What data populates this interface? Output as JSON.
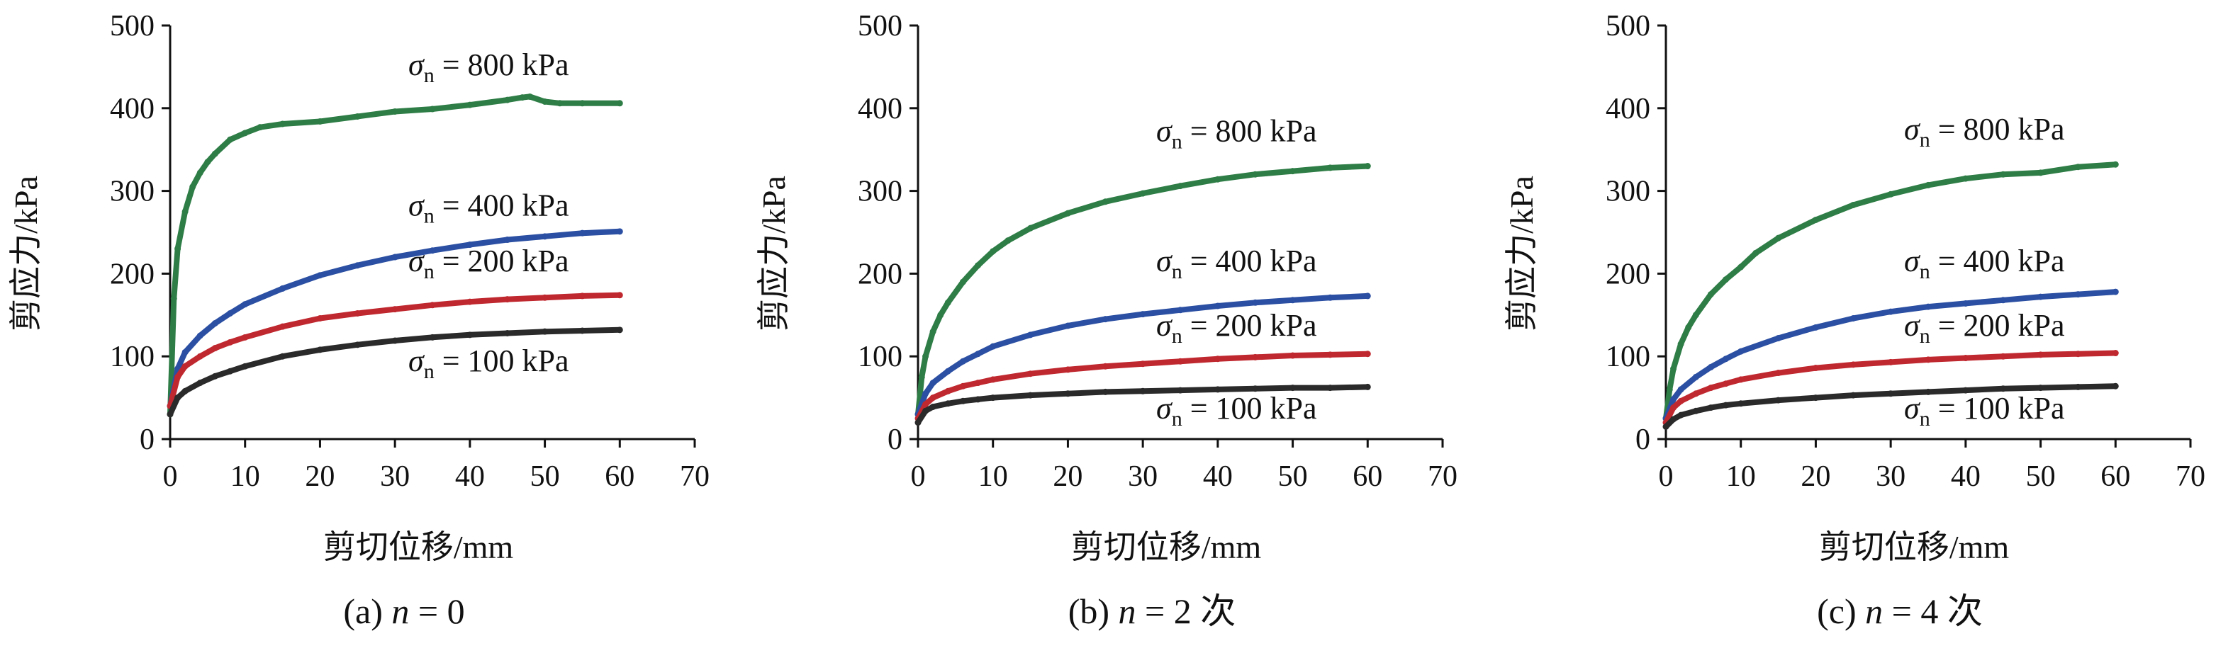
{
  "chart_data": [
    {
      "type": "line",
      "caption": "(a) n = 0",
      "caption_parts": {
        "open": "(a) ",
        "var": "n",
        "rest": " = 0"
      },
      "xlabel": "剪切位移/mm",
      "ylabel": "剪应力/kPa",
      "xlim": [
        0,
        70
      ],
      "ylim": [
        0,
        500
      ],
      "xticks": [
        "0",
        "10",
        "20",
        "30",
        "40",
        "50",
        "60",
        "70"
      ],
      "yticks": [
        "0",
        "100",
        "200",
        "300",
        "400",
        "500"
      ],
      "grid": false,
      "series": [
        {
          "name": "σn = 800 kPa",
          "label_parts": {
            "sym": "σ",
            "sub": "n",
            "rest": " = 800 kPa"
          },
          "color": "#2e7d46",
          "x": [
            0,
            0.5,
            1,
            2,
            3,
            4,
            5,
            6,
            8,
            10,
            12,
            15,
            20,
            25,
            30,
            35,
            40,
            45,
            47,
            48,
            50,
            52,
            55,
            60
          ],
          "y": [
            30,
            170,
            230,
            275,
            305,
            322,
            335,
            345,
            362,
            370,
            377,
            381,
            384,
            390,
            396,
            399,
            404,
            410,
            413,
            414,
            408,
            406,
            406,
            406
          ]
        },
        {
          "name": "σn = 400 kPa",
          "label_parts": {
            "sym": "σ",
            "sub": "n",
            "rest": " = 400 kPa"
          },
          "color": "#2b4fa2",
          "x": [
            0,
            1,
            2,
            4,
            6,
            8,
            10,
            15,
            20,
            25,
            30,
            35,
            40,
            45,
            50,
            55,
            60
          ],
          "y": [
            40,
            85,
            105,
            125,
            140,
            152,
            163,
            182,
            198,
            210,
            220,
            228,
            235,
            241,
            245,
            249,
            251
          ]
        },
        {
          "name": "σn = 200 kPa",
          "label_parts": {
            "sym": "σ",
            "sub": "n",
            "rest": " = 200 kPa"
          },
          "color": "#c0282f",
          "x": [
            0,
            1,
            2,
            4,
            6,
            8,
            10,
            15,
            20,
            25,
            30,
            35,
            40,
            45,
            50,
            55,
            60
          ],
          "y": [
            40,
            75,
            88,
            100,
            110,
            117,
            123,
            136,
            146,
            152,
            157,
            162,
            166,
            169,
            171,
            173,
            174
          ]
        },
        {
          "name": "σn = 100 kPa",
          "label_parts": {
            "sym": "σ",
            "sub": "n",
            "rest": " = 100 kPa"
          },
          "color": "#2a2a2a",
          "x": [
            0,
            1,
            2,
            4,
            6,
            8,
            10,
            15,
            20,
            25,
            30,
            35,
            40,
            45,
            50,
            55,
            60
          ],
          "y": [
            30,
            50,
            58,
            68,
            76,
            82,
            88,
            100,
            108,
            114,
            119,
            123,
            126,
            128,
            130,
            131,
            132
          ]
        }
      ]
    },
    {
      "type": "line",
      "caption": "(b) n = 2 次",
      "caption_parts": {
        "open": "(b) ",
        "var": "n",
        "rest": " = 2 次"
      },
      "xlabel": "剪切位移/mm",
      "ylabel": "剪应力/kPa",
      "xlim": [
        0,
        70
      ],
      "ylim": [
        0,
        500
      ],
      "xticks": [
        "0",
        "10",
        "20",
        "30",
        "40",
        "50",
        "60",
        "70"
      ],
      "yticks": [
        "0",
        "100",
        "200",
        "300",
        "400",
        "500"
      ],
      "grid": false,
      "series": [
        {
          "name": "σn = 800 kPa",
          "label_parts": {
            "sym": "σ",
            "sub": "n",
            "rest": " = 800 kPa"
          },
          "color": "#2e7d46",
          "x": [
            0,
            0.5,
            1,
            2,
            3,
            4,
            6,
            8,
            10,
            12,
            15,
            20,
            25,
            30,
            35,
            40,
            45,
            50,
            55,
            60
          ],
          "y": [
            30,
            75,
            100,
            130,
            150,
            165,
            190,
            210,
            227,
            240,
            255,
            273,
            287,
            297,
            306,
            314,
            320,
            324,
            328,
            330
          ]
        },
        {
          "name": "σn = 400 kPa",
          "label_parts": {
            "sym": "σ",
            "sub": "n",
            "rest": " = 400 kPa"
          },
          "color": "#2b4fa2",
          "x": [
            0,
            1,
            2,
            4,
            6,
            8,
            10,
            15,
            20,
            25,
            30,
            35,
            40,
            45,
            50,
            55,
            60
          ],
          "y": [
            30,
            55,
            68,
            82,
            94,
            103,
            112,
            126,
            137,
            145,
            151,
            156,
            161,
            165,
            168,
            171,
            173
          ]
        },
        {
          "name": "σn = 200 kPa",
          "label_parts": {
            "sym": "σ",
            "sub": "n",
            "rest": " = 200 kPa"
          },
          "color": "#c0282f",
          "x": [
            0,
            1,
            2,
            4,
            6,
            8,
            10,
            15,
            20,
            25,
            30,
            35,
            40,
            45,
            50,
            55,
            60
          ],
          "y": [
            25,
            42,
            50,
            58,
            64,
            68,
            72,
            79,
            84,
            88,
            91,
            94,
            97,
            99,
            101,
            102,
            103
          ]
        },
        {
          "name": "σn = 100 kPa",
          "label_parts": {
            "sym": "σ",
            "sub": "n",
            "rest": " = 100 kPa"
          },
          "color": "#2a2a2a",
          "x": [
            0,
            1,
            2,
            4,
            6,
            8,
            10,
            15,
            20,
            25,
            30,
            35,
            40,
            45,
            50,
            55,
            60
          ],
          "y": [
            20,
            34,
            39,
            43,
            46,
            48,
            50,
            53,
            55,
            57,
            58,
            59,
            60,
            61,
            62,
            62,
            63
          ]
        }
      ]
    },
    {
      "type": "line",
      "caption": "(c) n = 4 次",
      "caption_parts": {
        "open": "(c) ",
        "var": "n",
        "rest": " = 4 次"
      },
      "xlabel": "剪切位移/mm",
      "ylabel": "剪应力/kPa",
      "xlim": [
        0,
        70
      ],
      "ylim": [
        0,
        500
      ],
      "xticks": [
        "0",
        "10",
        "20",
        "30",
        "40",
        "50",
        "60",
        "70"
      ],
      "yticks": [
        "0",
        "100",
        "200",
        "300",
        "400",
        "500"
      ],
      "grid": false,
      "series": [
        {
          "name": "σn = 800 kPa",
          "label_parts": {
            "sym": "σ",
            "sub": "n",
            "rest": " = 800 kPa"
          },
          "color": "#2e7d46",
          "x": [
            0,
            0.5,
            1,
            2,
            3,
            4,
            6,
            8,
            10,
            12,
            15,
            20,
            25,
            30,
            35,
            40,
            45,
            50,
            55,
            60
          ],
          "y": [
            25,
            60,
            85,
            115,
            135,
            150,
            175,
            193,
            208,
            225,
            243,
            265,
            283,
            296,
            307,
            315,
            320,
            322,
            329,
            332
          ]
        },
        {
          "name": "σn = 400 kPa",
          "label_parts": {
            "sym": "σ",
            "sub": "n",
            "rest": " = 400 kPa"
          },
          "color": "#2b4fa2",
          "x": [
            0,
            1,
            2,
            4,
            6,
            8,
            10,
            15,
            20,
            25,
            30,
            35,
            40,
            45,
            50,
            55,
            60
          ],
          "y": [
            25,
            48,
            60,
            75,
            87,
            97,
            106,
            122,
            135,
            146,
            154,
            160,
            164,
            168,
            172,
            175,
            178
          ]
        },
        {
          "name": "σn = 200 kPa",
          "label_parts": {
            "sym": "σ",
            "sub": "n",
            "rest": " = 200 kPa"
          },
          "color": "#c0282f",
          "x": [
            0,
            1,
            2,
            4,
            6,
            8,
            10,
            15,
            20,
            25,
            30,
            35,
            40,
            45,
            50,
            55,
            60
          ],
          "y": [
            20,
            38,
            46,
            55,
            62,
            67,
            72,
            80,
            86,
            90,
            93,
            96,
            98,
            100,
            102,
            103,
            104
          ]
        },
        {
          "name": "σn = 100 kPa",
          "label_parts": {
            "sym": "σ",
            "sub": "n",
            "rest": " = 100 kPa"
          },
          "color": "#2a2a2a",
          "x": [
            0,
            1,
            2,
            4,
            6,
            8,
            10,
            15,
            20,
            25,
            30,
            35,
            40,
            45,
            50,
            55,
            60
          ],
          "y": [
            15,
            24,
            29,
            34,
            38,
            41,
            43,
            47,
            50,
            53,
            55,
            57,
            59,
            61,
            62,
            63,
            64
          ]
        }
      ]
    }
  ]
}
